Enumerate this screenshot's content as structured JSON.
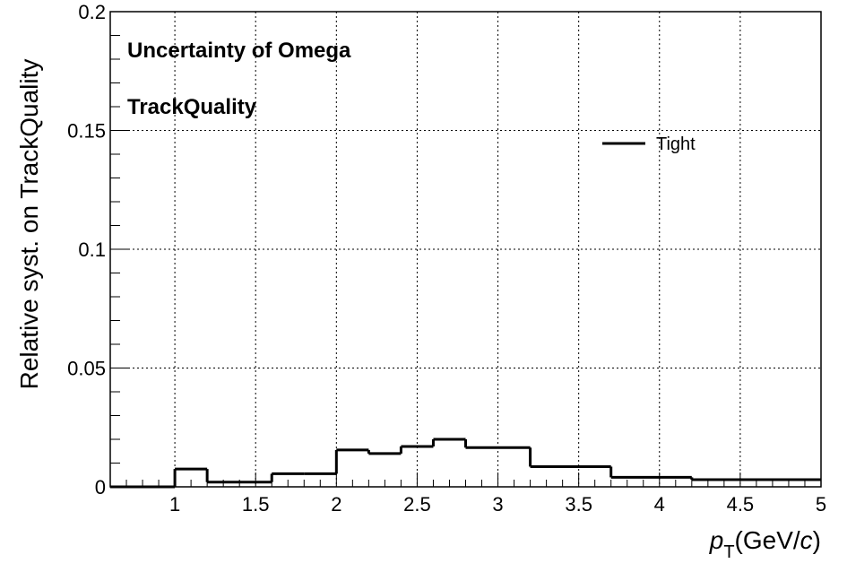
{
  "chart_data": {
    "type": "line",
    "style": "step-histogram",
    "xlabel_var": "p",
    "xlabel_sub": "T",
    "xlabel_unit_pre": "(GeV/",
    "xlabel_unit_c": "c",
    "xlabel_unit_post": ")",
    "ylabel": "Relative syst. on TrackQuality",
    "annotations": [
      "Uncertainty of Omega",
      "TrackQuality"
    ],
    "xlim": [
      0.6,
      5.0
    ],
    "ylim": [
      0,
      0.2
    ],
    "x_ticks": [
      "1",
      "1.5",
      "2",
      "2.5",
      "3",
      "3.5",
      "4",
      "4.5",
      "5"
    ],
    "y_ticks": [
      "0",
      "0.05",
      "0.1",
      "0.15",
      "0.2"
    ],
    "grid": true,
    "legend_position": "top-right",
    "series": [
      {
        "name": "Tight",
        "color": "#000000",
        "bin_edges": [
          0.6,
          1.0,
          1.2,
          1.4,
          1.6,
          1.8,
          2.0,
          2.2,
          2.4,
          2.6,
          2.8,
          3.0,
          3.2,
          3.7,
          4.2,
          5.0
        ],
        "values": [
          0.0,
          0.0075,
          0.002,
          0.002,
          0.0055,
          0.0055,
          0.0155,
          0.014,
          0.017,
          0.02,
          0.0165,
          0.0165,
          0.0085,
          0.004,
          0.003
        ]
      }
    ]
  }
}
